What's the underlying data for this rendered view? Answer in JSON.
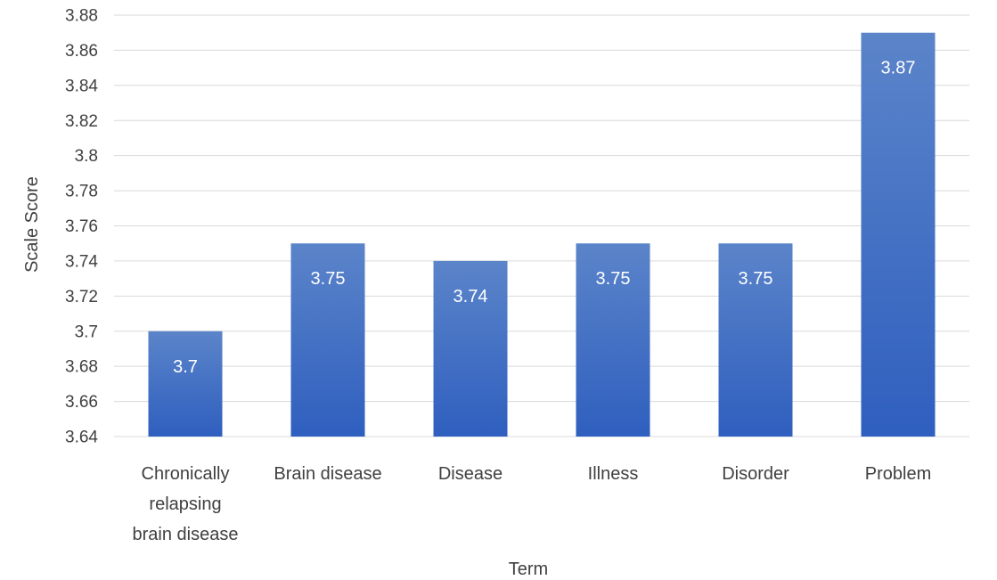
{
  "chart_data": {
    "type": "bar",
    "title": "",
    "xlabel": "Term",
    "ylabel": "Scale Score",
    "ylim": [
      3.64,
      3.88
    ],
    "ytick_step": 0.02,
    "yticks": [
      "3.64",
      "3.66",
      "3.68",
      "3.7",
      "3.72",
      "3.74",
      "3.76",
      "3.78",
      "3.8",
      "3.82",
      "3.84",
      "3.86",
      "3.88"
    ],
    "grid": true,
    "legend": "none",
    "bar_color_top": "#5b84c9",
    "bar_color_bottom": "#2f5fbf",
    "categories": [
      [
        "Chronically",
        "relapsing",
        "brain disease"
      ],
      [
        "Brain disease"
      ],
      [
        "Disease"
      ],
      [
        "Illness"
      ],
      [
        "Disorder"
      ],
      [
        "Problem"
      ]
    ],
    "values": [
      3.7,
      3.75,
      3.74,
      3.75,
      3.75,
      3.87
    ],
    "data_labels": [
      "3.7",
      "3.75",
      "3.74",
      "3.75",
      "3.75",
      "3.87"
    ]
  }
}
